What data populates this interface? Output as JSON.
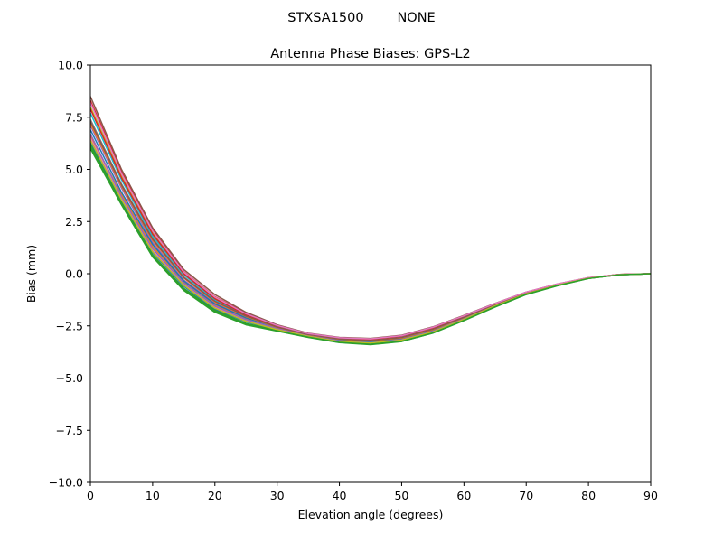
{
  "chart_data": {
    "type": "line",
    "suptitle": "STXSA1500        NONE",
    "title": "Antenna Phase Biases: GPS-L2",
    "xlabel": "Elevation angle (degrees)",
    "ylabel": "Bias (mm)",
    "xlim": [
      0,
      90
    ],
    "ylim": [
      -10,
      10
    ],
    "xticks": [
      0,
      10,
      20,
      30,
      40,
      50,
      60,
      70,
      80,
      90
    ],
    "xtick_labels": [
      "0",
      "10",
      "20",
      "30",
      "40",
      "50",
      "60",
      "70",
      "80",
      "90"
    ],
    "yticks": [
      -10,
      -7.5,
      -5,
      -2.5,
      0,
      2.5,
      5,
      7.5,
      10
    ],
    "ytick_labels": [
      "−10.0",
      "−7.5",
      "−5.0",
      "−2.5",
      "0.0",
      "2.5",
      "5.0",
      "7.5",
      "10.0"
    ],
    "grid": false,
    "x": [
      0,
      5,
      10,
      15,
      20,
      25,
      30,
      35,
      40,
      45,
      50,
      55,
      60,
      65,
      70,
      75,
      80,
      85,
      90
    ],
    "series": [
      {
        "color": "#1f77b4",
        "values": [
          6.3,
          3.5,
          1.0,
          -0.6,
          -1.7,
          -2.3,
          -2.7,
          -3.0,
          -3.25,
          -3.35,
          -3.2,
          -2.8,
          -2.2,
          -1.55,
          -0.95,
          -0.55,
          -0.22,
          -0.05,
          0.0
        ]
      },
      {
        "color": "#ff7f0e",
        "values": [
          6.6,
          3.8,
          1.3,
          -0.4,
          -1.5,
          -2.15,
          -2.6,
          -2.95,
          -3.2,
          -3.3,
          -3.15,
          -2.75,
          -2.15,
          -1.5,
          -0.93,
          -0.53,
          -0.21,
          -0.04,
          0.0
        ]
      },
      {
        "color": "#2ca02c",
        "values": [
          6.0,
          3.3,
          0.8,
          -0.8,
          -1.85,
          -2.45,
          -2.75,
          -3.05,
          -3.3,
          -3.4,
          -3.25,
          -2.85,
          -2.25,
          -1.6,
          -1.0,
          -0.58,
          -0.23,
          -0.05,
          0.0
        ]
      },
      {
        "color": "#d62728",
        "values": [
          8.3,
          4.9,
          2.1,
          0.1,
          -1.1,
          -1.9,
          -2.5,
          -2.9,
          -3.1,
          -3.15,
          -3.0,
          -2.6,
          -2.05,
          -1.45,
          -0.9,
          -0.5,
          -0.2,
          -0.03,
          0.0
        ]
      },
      {
        "color": "#9467bd",
        "values": [
          7.1,
          4.1,
          1.5,
          -0.3,
          -1.4,
          -2.1,
          -2.6,
          -2.95,
          -3.15,
          -3.25,
          -3.1,
          -2.7,
          -2.12,
          -1.5,
          -0.92,
          -0.52,
          -0.21,
          -0.04,
          0.0
        ]
      },
      {
        "color": "#8c564b",
        "values": [
          8.5,
          5.0,
          2.2,
          0.2,
          -1.0,
          -1.85,
          -2.45,
          -2.85,
          -3.05,
          -3.1,
          -2.95,
          -2.55,
          -2.0,
          -1.42,
          -0.88,
          -0.49,
          -0.19,
          -0.03,
          0.0
        ]
      },
      {
        "color": "#e377c2",
        "values": [
          6.5,
          3.6,
          1.1,
          -0.5,
          -1.6,
          -2.25,
          -2.65,
          -3.0,
          -3.25,
          -3.3,
          -3.15,
          -2.78,
          -2.18,
          -1.53,
          -0.95,
          -0.54,
          -0.22,
          -0.05,
          0.0
        ]
      },
      {
        "color": "#7f7f7f",
        "values": [
          7.4,
          4.3,
          1.7,
          -0.15,
          -1.3,
          -2.0,
          -2.55,
          -2.9,
          -3.12,
          -3.2,
          -3.05,
          -2.65,
          -2.08,
          -1.47,
          -0.9,
          -0.51,
          -0.2,
          -0.04,
          0.0
        ]
      },
      {
        "color": "#bcbd22",
        "values": [
          8.0,
          4.7,
          2.0,
          0.05,
          -1.15,
          -1.95,
          -2.5,
          -2.88,
          -3.08,
          -3.13,
          -2.98,
          -2.58,
          -2.03,
          -1.44,
          -0.89,
          -0.5,
          -0.2,
          -0.03,
          0.0
        ]
      },
      {
        "color": "#17becf",
        "values": [
          7.7,
          4.5,
          1.8,
          -0.05,
          -1.25,
          -2.0,
          -2.52,
          -2.9,
          -3.1,
          -3.18,
          -3.02,
          -2.62,
          -2.06,
          -1.46,
          -0.9,
          -0.5,
          -0.2,
          -0.04,
          0.0
        ]
      },
      {
        "color": "#1f77b4",
        "values": [
          6.9,
          3.9,
          1.4,
          -0.35,
          -1.45,
          -2.12,
          -2.6,
          -2.96,
          -3.18,
          -3.28,
          -3.12,
          -2.72,
          -2.14,
          -1.51,
          -0.93,
          -0.53,
          -0.21,
          -0.04,
          0.0
        ]
      },
      {
        "color": "#ff7f0e",
        "values": [
          7.2,
          4.2,
          1.6,
          -0.2,
          -1.35,
          -2.05,
          -2.58,
          -2.92,
          -3.14,
          -3.22,
          -3.08,
          -2.68,
          -2.1,
          -1.48,
          -0.91,
          -0.52,
          -0.2,
          -0.04,
          0.0
        ]
      },
      {
        "color": "#2ca02c",
        "values": [
          6.2,
          3.4,
          0.9,
          -0.7,
          -1.75,
          -2.38,
          -2.72,
          -3.02,
          -3.28,
          -3.36,
          -3.22,
          -2.82,
          -2.22,
          -1.57,
          -0.97,
          -0.56,
          -0.22,
          -0.05,
          0.0
        ]
      },
      {
        "color": "#d62728",
        "values": [
          7.9,
          4.6,
          1.9,
          0.0,
          -1.2,
          -1.97,
          -2.51,
          -2.89,
          -3.09,
          -3.15,
          -2.99,
          -2.6,
          -2.04,
          -1.45,
          -0.89,
          -0.5,
          -0.2,
          -0.03,
          0.0
        ]
      },
      {
        "color": "#9467bd",
        "values": [
          6.7,
          3.7,
          1.2,
          -0.45,
          -1.55,
          -2.2,
          -2.63,
          -2.98,
          -3.22,
          -3.31,
          -3.16,
          -2.76,
          -2.16,
          -1.52,
          -0.94,
          -0.54,
          -0.21,
          -0.05,
          0.0
        ]
      },
      {
        "color": "#8c564b",
        "values": [
          7.3,
          4.25,
          1.65,
          -0.18,
          -1.32,
          -2.03,
          -2.56,
          -2.91,
          -3.13,
          -3.21,
          -3.06,
          -2.66,
          -2.09,
          -1.47,
          -0.91,
          -0.51,
          -0.2,
          -0.04,
          0.0
        ]
      },
      {
        "color": "#e377c2",
        "values": [
          8.2,
          4.8,
          2.05,
          0.08,
          -1.12,
          -1.92,
          -2.48,
          -2.87,
          -3.07,
          -3.12,
          -2.97,
          -2.57,
          -2.02,
          -1.43,
          -0.88,
          -0.49,
          -0.19,
          -0.03,
          0.0
        ]
      },
      {
        "color": "#bcbd22",
        "values": [
          6.4,
          3.55,
          1.05,
          -0.55,
          -1.65,
          -2.28,
          -2.68,
          -3.0,
          -3.25,
          -3.32,
          -3.18,
          -2.79,
          -2.19,
          -1.54,
          -0.96,
          -0.55,
          -0.22,
          -0.05,
          0.0
        ]
      },
      {
        "color": "#2ca02c",
        "values": [
          6.1,
          3.35,
          0.85,
          -0.75,
          -1.8,
          -2.42,
          -2.74,
          -3.04,
          -3.29,
          -3.38,
          -3.24,
          -2.84,
          -2.24,
          -1.59,
          -0.99,
          -0.57,
          -0.23,
          -0.05,
          0.0
        ]
      }
    ]
  }
}
